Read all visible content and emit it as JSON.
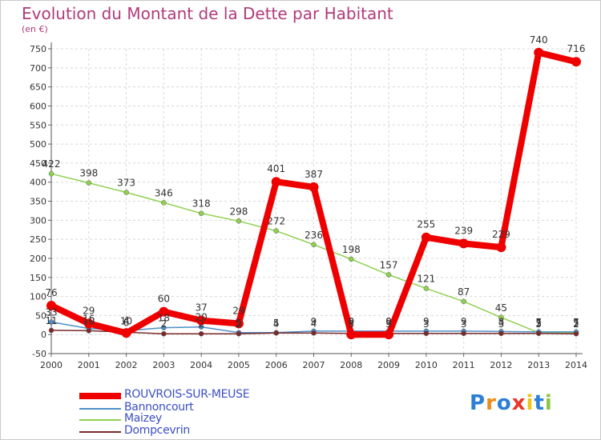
{
  "chart_data": {
    "type": "line",
    "title": "Evolution du Montant de la Dette par Habitant",
    "unit_label": "(en €)",
    "x": [
      "2000",
      "2001",
      "2002",
      "2003",
      "2004",
      "2005",
      "2006",
      "2007",
      "2008",
      "2009",
      "2010",
      "2011",
      "2012",
      "2013",
      "2014"
    ],
    "y_ticks": [
      "750",
      "700",
      "650",
      "600",
      "550",
      "500",
      "450",
      "400",
      "350",
      "300",
      "250",
      "200",
      "150",
      "100",
      "50",
      "0",
      "-50"
    ],
    "ylim": [
      -50,
      750
    ],
    "grid": true,
    "legend_position": "bottom-left",
    "series": [
      {
        "name": "ROUVROIS-SUR-MEUSE",
        "color": "#ee0000",
        "values": [
          76,
          29,
          4,
          60,
          37,
          29,
          401,
          387,
          0,
          0,
          255,
          239,
          229,
          740,
          716
        ],
        "labels": [
          "76",
          "29",
          "4",
          "60",
          "37",
          "29",
          "401",
          "387",
          "0",
          "0",
          "255",
          "239",
          "229",
          "740",
          "716"
        ]
      },
      {
        "name": "Bannoncourt",
        "color": "#4e8fc8",
        "values": [
          33,
          16,
          10,
          18,
          20,
          5,
          5,
          9,
          9,
          9,
          9,
          9,
          8,
          7,
          7
        ],
        "labels": [
          "33",
          "16",
          "10",
          "18",
          "20",
          "5",
          "5",
          "9",
          "9",
          "9",
          "9",
          "9",
          "8",
          "7",
          "7"
        ]
      },
      {
        "name": "Maizey",
        "color": "#8fd14f",
        "values": [
          422,
          398,
          373,
          346,
          318,
          298,
          272,
          236,
          198,
          157,
          121,
          87,
          45,
          5,
          5
        ],
        "labels": [
          "422",
          "398",
          "373",
          "346",
          "318",
          "298",
          "272",
          "236",
          "198",
          "157",
          "121",
          "87",
          "45",
          "5",
          "5"
        ]
      },
      {
        "name": "Dompcevrin",
        "color": "#7a2a2a",
        "values": [
          11,
          10,
          6,
          2,
          2,
          2,
          4,
          4,
          3,
          3,
          3,
          3,
          3,
          3,
          2
        ],
        "labels": [
          "11",
          "10",
          "6",
          "2",
          "2",
          "2",
          "4",
          "4",
          "3",
          "3",
          "3",
          "3",
          "3",
          "3",
          "2"
        ]
      }
    ]
  },
  "brand": {
    "letters": [
      "P",
      "r",
      "o",
      "x",
      "i",
      "t",
      "i"
    ],
    "colors": [
      "#2b7fd4",
      "#f08a1c",
      "#2b7fd4",
      "#e8372a",
      "#f0c419",
      "#2b7fd4",
      "#8cc63f"
    ]
  }
}
